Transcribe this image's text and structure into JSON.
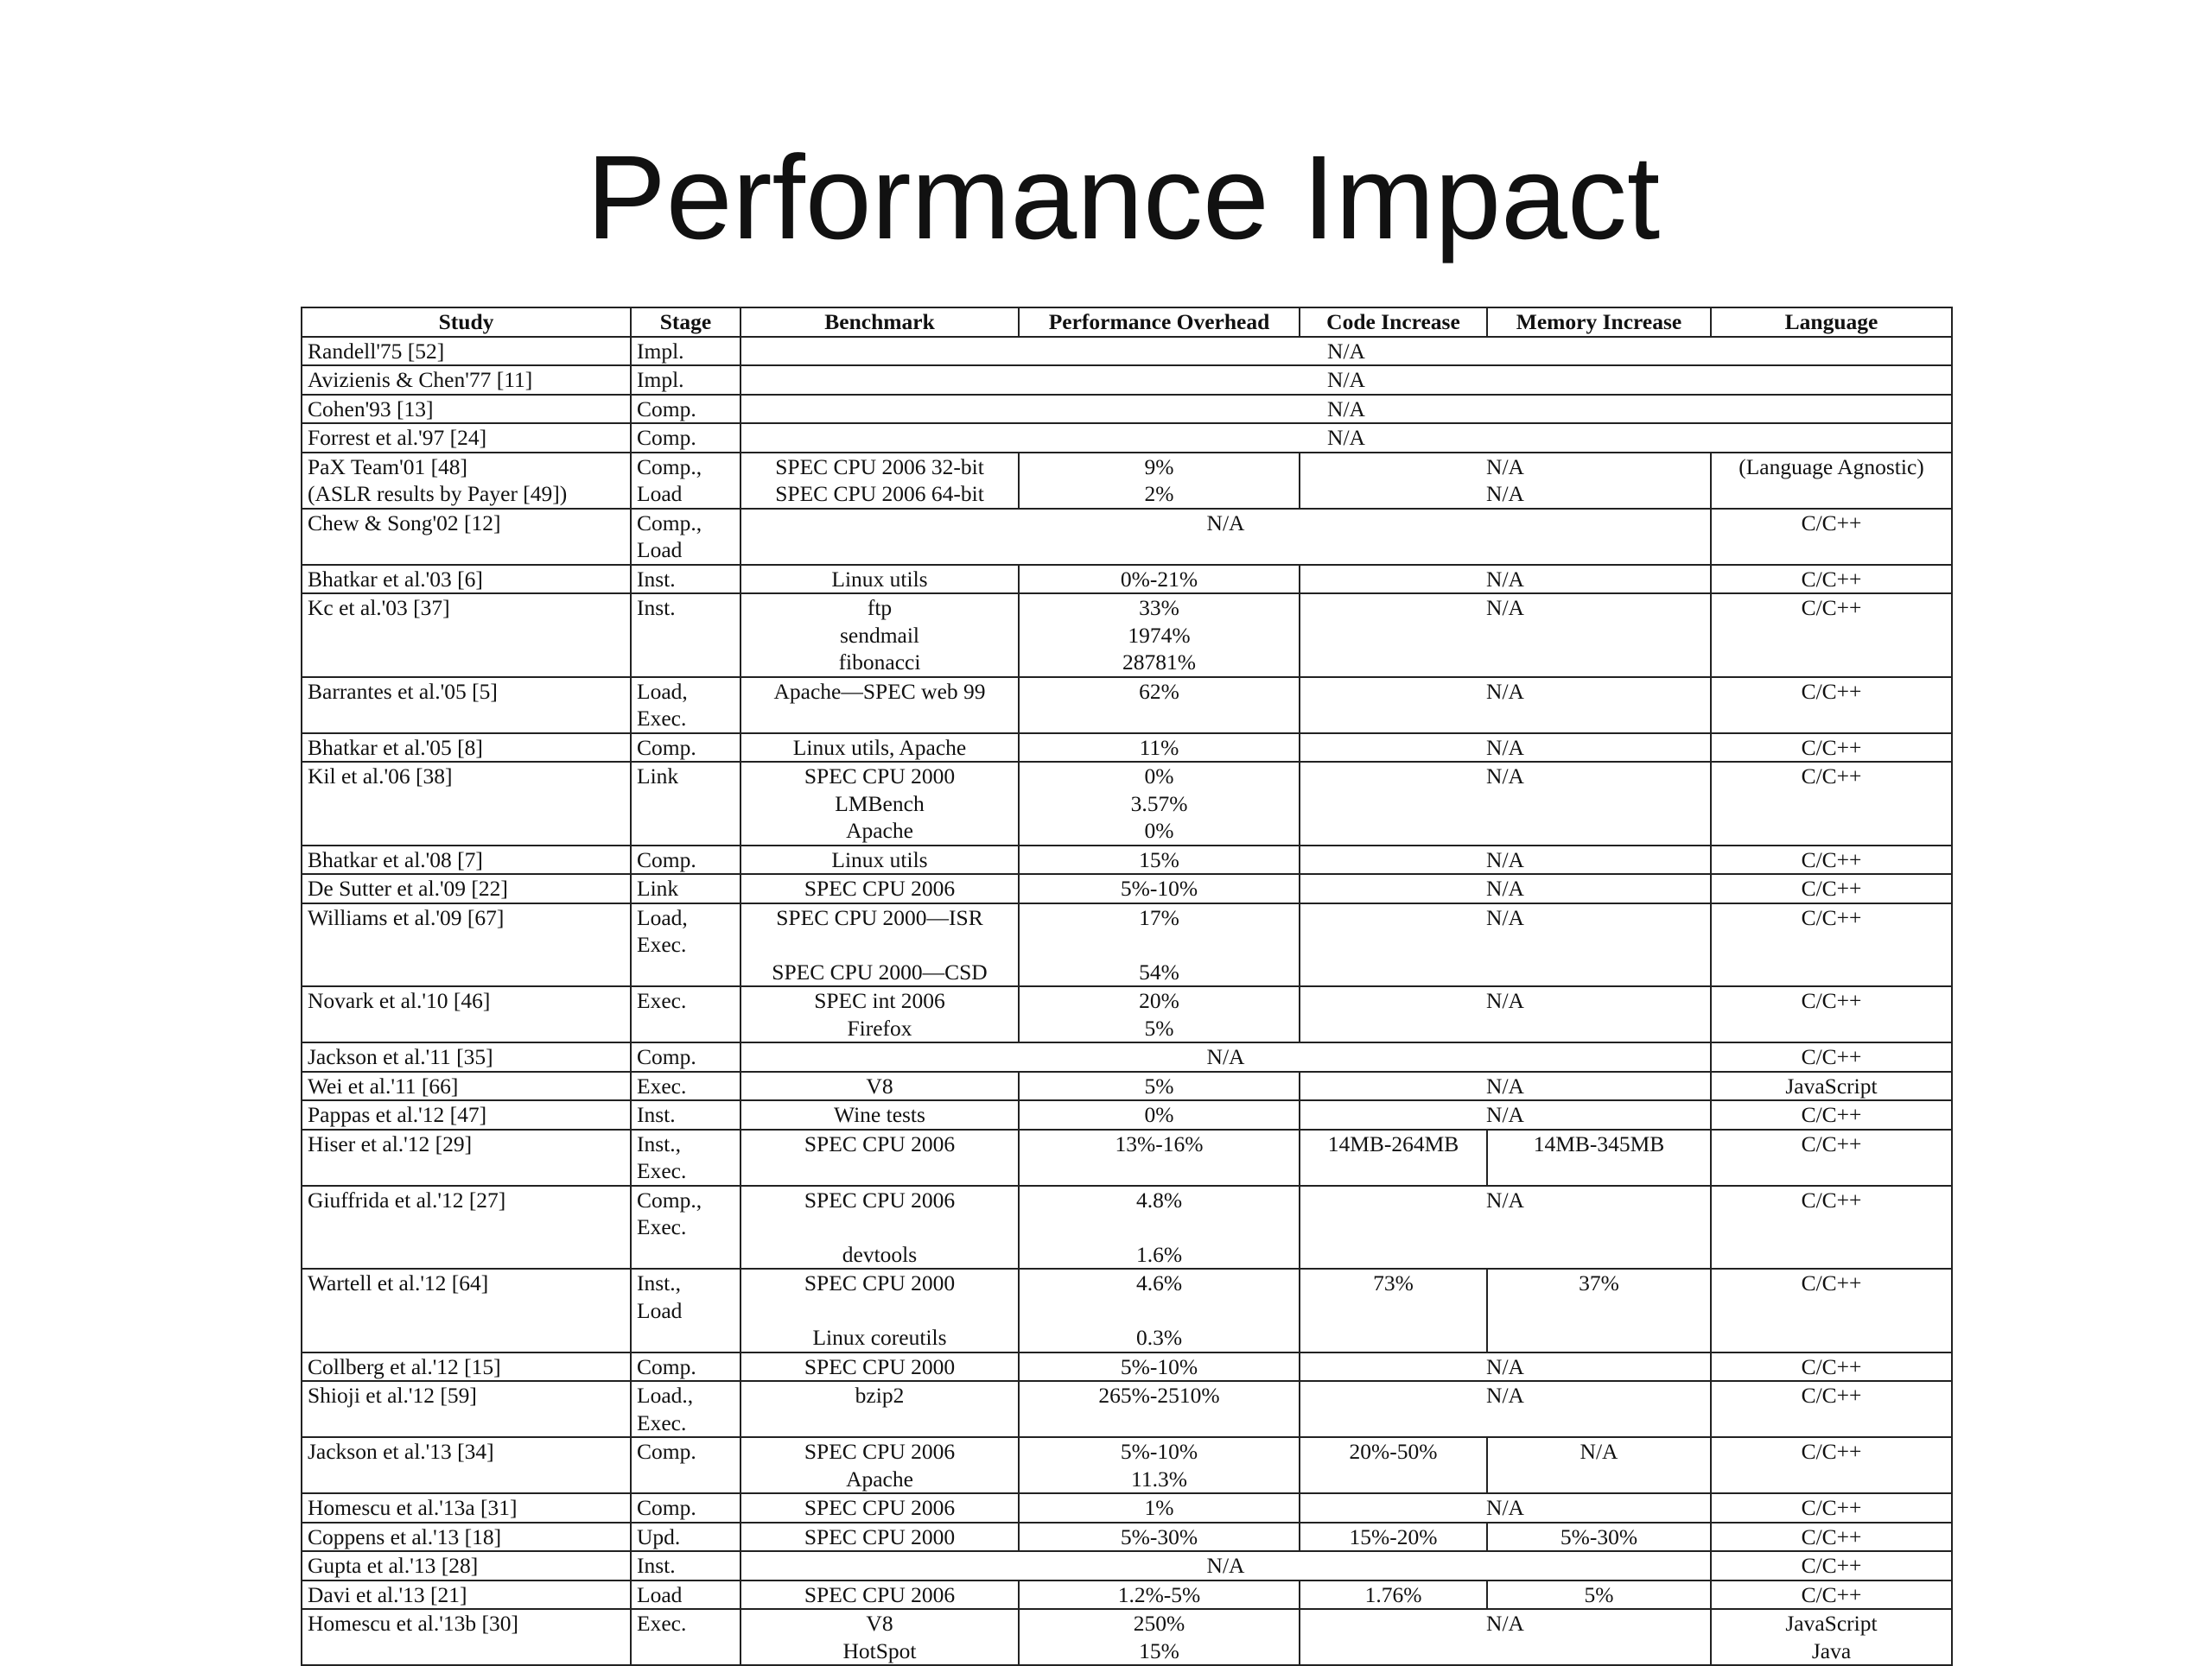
{
  "title": "Performance Impact",
  "table": {
    "headers": [
      "Study",
      "Stage",
      "Benchmark",
      "Performance Overhead",
      "Code Increase",
      "Memory Increase",
      "Language"
    ],
    "rows": [
      {
        "study": [
          "Randell'75 [52]"
        ],
        "stage": [
          "Impl."
        ],
        "na_all": "N/A"
      },
      {
        "study": [
          "Avizienis & Chen'77 [11]"
        ],
        "stage": [
          "Impl."
        ],
        "na_all": "N/A"
      },
      {
        "study": [
          "Cohen'93 [13]"
        ],
        "stage": [
          "Comp."
        ],
        "na_all": "N/A"
      },
      {
        "study": [
          "Forrest et al.'97 [24]"
        ],
        "stage": [
          "Comp."
        ],
        "na_all": "N/A"
      },
      {
        "study": [
          "PaX Team'01 [48]",
          "(ASLR results by Payer [49])"
        ],
        "stage": [
          "Comp.,",
          "Load"
        ],
        "benchmark": [
          "SPEC CPU 2006 32-bit",
          "SPEC CPU 2006 64-bit"
        ],
        "overhead": [
          "9%",
          "2%"
        ],
        "code_mem": [
          "N/A",
          "N/A"
        ],
        "language": [
          "(Language Agnostic)"
        ]
      },
      {
        "study": [
          "Chew & Song'02 [12]"
        ],
        "stage": [
          "Comp.,",
          "Load"
        ],
        "na_mid": "N/A",
        "language": [
          "C/C++"
        ]
      },
      {
        "study": [
          "Bhatkar et al.'03 [6]"
        ],
        "stage": [
          "Inst."
        ],
        "benchmark": [
          "Linux utils"
        ],
        "overhead": [
          "0%-21%"
        ],
        "code_mem": [
          "N/A"
        ],
        "language": [
          "C/C++"
        ]
      },
      {
        "study": [
          "Kc et al.'03 [37]"
        ],
        "stage": [
          "Inst."
        ],
        "benchmark": [
          "ftp",
          "sendmail",
          "fibonacci"
        ],
        "overhead": [
          "33%",
          "1974%",
          "28781%"
        ],
        "code_mem": [
          "N/A"
        ],
        "language": [
          "C/C++"
        ]
      },
      {
        "study": [
          "Barrantes et al.'05 [5]"
        ],
        "stage": [
          "Load,",
          "Exec."
        ],
        "benchmark": [
          "Apache—SPEC web 99"
        ],
        "overhead": [
          "62%"
        ],
        "code_mem": [
          "N/A"
        ],
        "language": [
          "C/C++"
        ]
      },
      {
        "study": [
          "Bhatkar et al.'05 [8]"
        ],
        "stage": [
          "Comp."
        ],
        "benchmark": [
          "Linux utils, Apache"
        ],
        "overhead": [
          "11%"
        ],
        "code_mem": [
          "N/A"
        ],
        "language": [
          "C/C++"
        ]
      },
      {
        "study": [
          "Kil et al.'06 [38]"
        ],
        "stage": [
          "Link"
        ],
        "benchmark": [
          "SPEC CPU 2000",
          "LMBench",
          "Apache"
        ],
        "overhead": [
          "0%",
          "3.57%",
          "0%"
        ],
        "code_mem": [
          "N/A"
        ],
        "language": [
          "C/C++"
        ]
      },
      {
        "study": [
          "Bhatkar et al.'08 [7]"
        ],
        "stage": [
          "Comp."
        ],
        "benchmark": [
          "Linux utils"
        ],
        "overhead": [
          "15%"
        ],
        "code_mem": [
          "N/A"
        ],
        "language": [
          "C/C++"
        ]
      },
      {
        "study": [
          "De Sutter et al.'09 [22]"
        ],
        "stage": [
          "Link"
        ],
        "benchmark": [
          "SPEC CPU 2006"
        ],
        "overhead": [
          "5%-10%"
        ],
        "code_mem": [
          "N/A"
        ],
        "language": [
          "C/C++"
        ]
      },
      {
        "study": [
          "Williams et al.'09 [67]"
        ],
        "stage": [
          "Load,",
          "Exec."
        ],
        "benchmark": [
          "SPEC CPU 2000—ISR",
          "",
          "SPEC CPU 2000—CSD"
        ],
        "overhead": [
          "17%",
          "",
          "54%"
        ],
        "code_mem": [
          "N/A"
        ],
        "language": [
          "C/C++"
        ]
      },
      {
        "study": [
          "Novark et al.'10 [46]"
        ],
        "stage": [
          "Exec."
        ],
        "benchmark": [
          "SPEC int 2006",
          "Firefox"
        ],
        "overhead": [
          "20%",
          "5%"
        ],
        "code_mem": [
          "N/A"
        ],
        "language": [
          "C/C++"
        ]
      },
      {
        "study": [
          "Jackson et al.'11 [35]"
        ],
        "stage": [
          "Comp."
        ],
        "na_mid": "N/A",
        "language": [
          "C/C++"
        ]
      },
      {
        "study": [
          "Wei et al.'11 [66]"
        ],
        "stage": [
          "Exec."
        ],
        "benchmark": [
          "V8"
        ],
        "overhead": [
          "5%"
        ],
        "code_mem": [
          "N/A"
        ],
        "language": [
          "JavaScript"
        ]
      },
      {
        "study": [
          "Pappas et al.'12 [47]"
        ],
        "stage": [
          "Inst."
        ],
        "benchmark": [
          "Wine tests"
        ],
        "overhead": [
          "0%"
        ],
        "code_mem": [
          "N/A"
        ],
        "language": [
          "C/C++"
        ]
      },
      {
        "study": [
          "Hiser et al.'12 [29]"
        ],
        "stage": [
          "Inst.,",
          "Exec."
        ],
        "benchmark": [
          "SPEC CPU 2006"
        ],
        "overhead": [
          "13%-16%"
        ],
        "code": [
          "14MB-264MB"
        ],
        "memory": [
          "14MB-345MB"
        ],
        "language": [
          "C/C++"
        ]
      },
      {
        "study": [
          "Giuffrida et al.'12 [27]"
        ],
        "stage": [
          "Comp.,",
          "Exec."
        ],
        "benchmark": [
          "SPEC CPU 2006",
          "",
          "devtools"
        ],
        "overhead": [
          "4.8%",
          "",
          "1.6%"
        ],
        "code_mem": [
          "N/A"
        ],
        "language": [
          "C/C++"
        ]
      },
      {
        "study": [
          "Wartell et al.'12 [64]"
        ],
        "stage": [
          "Inst.,",
          "Load"
        ],
        "benchmark": [
          "SPEC CPU 2000",
          "",
          "Linux coreutils"
        ],
        "overhead": [
          "4.6%",
          "",
          "0.3%"
        ],
        "code": [
          "73%"
        ],
        "memory": [
          "37%"
        ],
        "language": [
          "C/C++"
        ]
      },
      {
        "study": [
          "Collberg et al.'12 [15]"
        ],
        "stage": [
          "Comp."
        ],
        "benchmark": [
          "SPEC CPU 2000"
        ],
        "overhead": [
          "5%-10%"
        ],
        "code_mem": [
          "N/A"
        ],
        "language": [
          "C/C++"
        ]
      },
      {
        "study": [
          "Shioji et al.'12 [59]"
        ],
        "stage": [
          "Load.,",
          "Exec."
        ],
        "benchmark": [
          "bzip2"
        ],
        "overhead": [
          "265%-2510%"
        ],
        "code_mem": [
          "N/A"
        ],
        "language": [
          "C/C++"
        ]
      },
      {
        "study": [
          "Jackson et al.'13 [34]"
        ],
        "stage": [
          "Comp."
        ],
        "benchmark": [
          "SPEC CPU 2006",
          "Apache"
        ],
        "overhead": [
          "5%-10%",
          "11.3%"
        ],
        "code": [
          "20%-50%"
        ],
        "memory": [
          "N/A"
        ],
        "language": [
          "C/C++"
        ]
      },
      {
        "study": [
          "Homescu et al.'13a [31]"
        ],
        "stage": [
          "Comp."
        ],
        "benchmark": [
          "SPEC CPU 2006"
        ],
        "overhead": [
          "1%"
        ],
        "code_mem": [
          "N/A"
        ],
        "language": [
          "C/C++"
        ]
      },
      {
        "study": [
          "Coppens et al.'13 [18]"
        ],
        "stage": [
          "Upd."
        ],
        "benchmark": [
          "SPEC CPU 2000"
        ],
        "overhead": [
          "5%-30%"
        ],
        "code": [
          "15%-20%"
        ],
        "memory": [
          "5%-30%"
        ],
        "language": [
          "C/C++"
        ]
      },
      {
        "study": [
          "Gupta et al.'13 [28]"
        ],
        "stage": [
          "Inst."
        ],
        "na_mid": "N/A",
        "language": [
          "C/C++"
        ]
      },
      {
        "study": [
          "Davi et al.'13 [21]"
        ],
        "stage": [
          "Load"
        ],
        "benchmark": [
          "SPEC CPU 2006"
        ],
        "overhead": [
          "1.2%-5%"
        ],
        "code": [
          "1.76%"
        ],
        "memory": [
          "5%"
        ],
        "language": [
          "C/C++"
        ]
      },
      {
        "study": [
          "Homescu et al.'13b [30]"
        ],
        "stage": [
          "Exec."
        ],
        "benchmark": [
          "V8",
          "HotSpot"
        ],
        "overhead": [
          "250%",
          "15%"
        ],
        "code_mem": [
          "N/A"
        ],
        "language": [
          "JavaScript",
          "Java"
        ]
      }
    ]
  }
}
